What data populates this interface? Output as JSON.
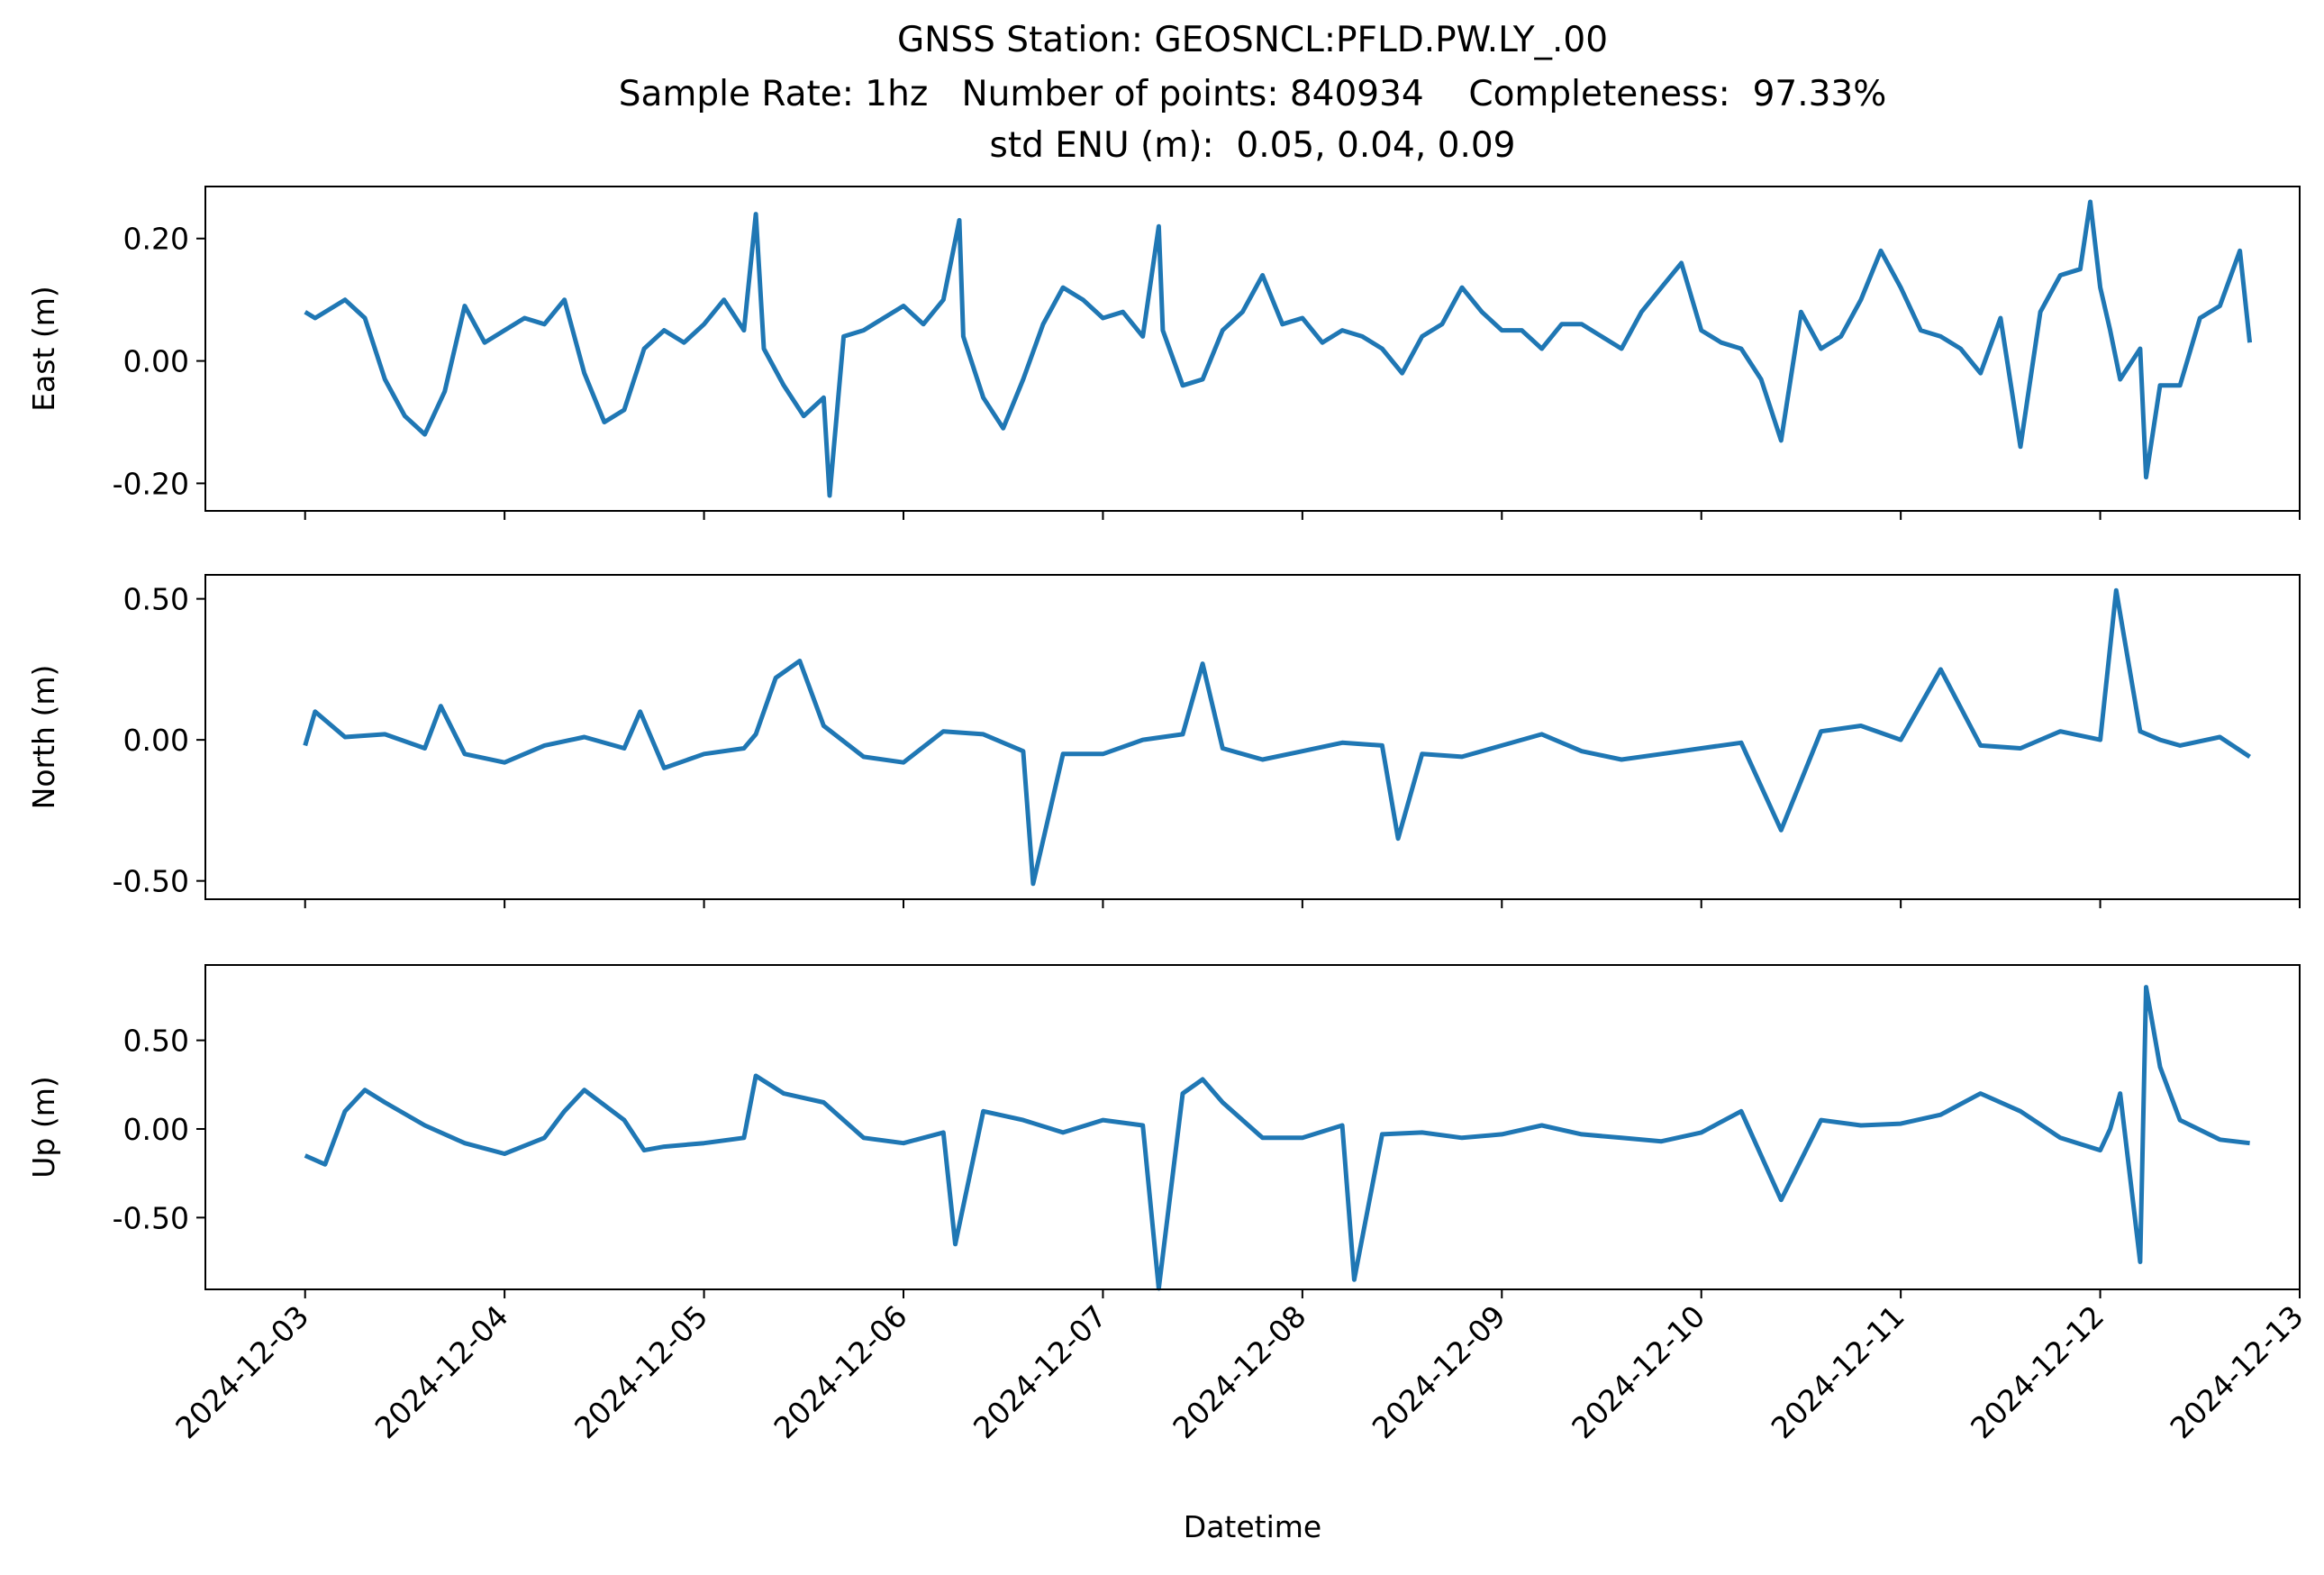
{
  "figure": {
    "title_lines": [
      "GNSS Station: GEOSNCL:PFLD.PW.LY_.00",
      "Sample Rate: 1hz   Number of points: 840934    Completeness:  97.33%",
      "std ENU (m):  0.05, 0.04, 0.09"
    ],
    "xlabel": "Datetime",
    "line_color": "#1f77b4"
  },
  "chart_data": [
    {
      "type": "line",
      "name": "east-panel",
      "ylabel": "East (m)",
      "ylim": [
        -0.245,
        0.285
      ],
      "yticks": [
        0.2,
        0.0,
        -0.2
      ],
      "ytick_labels": [
        "0.20",
        "0.00",
        "-0.20"
      ],
      "xlim": [
        "2024-12-02T12:00",
        "2024-12-13T00:00"
      ],
      "xticks": [
        "2024-12-03",
        "2024-12-04",
        "2024-12-05",
        "2024-12-06",
        "2024-12-07",
        "2024-12-08",
        "2024-12-09",
        "2024-12-10",
        "2024-12-11",
        "2024-12-12",
        "2024-12-13"
      ],
      "x_tick_labels_shown": false,
      "grid": false,
      "color": "#1f77b4",
      "x": [
        "2024-12-03 00:00",
        "2024-12-03 01:12",
        "2024-12-03 02:24",
        "2024-12-03 04:48",
        "2024-12-03 07:12",
        "2024-12-03 09:36",
        "2024-12-03 12:00",
        "2024-12-03 14:24",
        "2024-12-03 16:48",
        "2024-12-03 19:12",
        "2024-12-03 21:36",
        "2024-12-04 00:00",
        "2024-12-04 02:24",
        "2024-12-04 04:48",
        "2024-12-04 07:12",
        "2024-12-04 09:36",
        "2024-12-04 12:00",
        "2024-12-04 14:24",
        "2024-12-04 16:48",
        "2024-12-04 19:12",
        "2024-12-04 21:36",
        "2024-12-05 00:00",
        "2024-12-05 02:24",
        "2024-12-05 04:48",
        "2024-12-05 06:14",
        "2024-12-05 07:12",
        "2024-12-05 09:36",
        "2024-12-05 12:00",
        "2024-12-05 14:24",
        "2024-12-05 15:07",
        "2024-12-05 16:48",
        "2024-12-05 19:12",
        "2024-12-05 21:36",
        "2024-12-06 00:00",
        "2024-12-06 02:24",
        "2024-12-06 04:48",
        "2024-12-06 06:43",
        "2024-12-06 07:12",
        "2024-12-06 09:36",
        "2024-12-06 12:00",
        "2024-12-06 14:24",
        "2024-12-06 16:48",
        "2024-12-06 19:12",
        "2024-12-06 21:36",
        "2024-12-07 00:00",
        "2024-12-07 02:24",
        "2024-12-07 04:48",
        "2024-12-07 06:43",
        "2024-12-07 07:12",
        "2024-12-07 09:36",
        "2024-12-07 12:00",
        "2024-12-07 14:24",
        "2024-12-07 16:48",
        "2024-12-07 19:12",
        "2024-12-07 21:36",
        "2024-12-08 00:00",
        "2024-12-08 02:24",
        "2024-12-08 04:48",
        "2024-12-08 07:12",
        "2024-12-08 09:36",
        "2024-12-08 12:00",
        "2024-12-08 14:24",
        "2024-12-08 16:48",
        "2024-12-08 19:12",
        "2024-12-08 21:36",
        "2024-12-09 00:00",
        "2024-12-09 02:24",
        "2024-12-09 04:48",
        "2024-12-09 07:12",
        "2024-12-09 09:36",
        "2024-12-09 12:00",
        "2024-12-09 14:24",
        "2024-12-09 16:48",
        "2024-12-09 19:12",
        "2024-12-09 21:36",
        "2024-12-10 00:00",
        "2024-12-10 02:24",
        "2024-12-10 04:48",
        "2024-12-10 07:12",
        "2024-12-10 09:36",
        "2024-12-10 12:00",
        "2024-12-10 14:24",
        "2024-12-10 16:48",
        "2024-12-10 19:12",
        "2024-12-10 21:36",
        "2024-12-11 00:00",
        "2024-12-11 02:24",
        "2024-12-11 04:48",
        "2024-12-11 07:12",
        "2024-12-11 09:36",
        "2024-12-11 12:00",
        "2024-12-11 14:24",
        "2024-12-11 16:48",
        "2024-12-11 19:12",
        "2024-12-11 21:36",
        "2024-12-11 22:48",
        "2024-12-12 00:00",
        "2024-12-12 01:12",
        "2024-12-12 02:24",
        "2024-12-12 04:48",
        "2024-12-12 05:31",
        "2024-12-12 07:12",
        "2024-12-12 09:36",
        "2024-12-12 12:00",
        "2024-12-12 14:24",
        "2024-12-12 16:48",
        "2024-12-12 18:00"
      ],
      "values": [
        0.08,
        0.07,
        0.08,
        0.1,
        0.07,
        -0.03,
        -0.09,
        -0.12,
        -0.05,
        0.09,
        0.03,
        0.05,
        0.07,
        0.06,
        0.1,
        -0.02,
        -0.1,
        -0.08,
        0.02,
        0.05,
        0.03,
        0.06,
        0.1,
        0.05,
        0.24,
        0.02,
        -0.04,
        -0.09,
        -0.06,
        -0.22,
        0.04,
        0.05,
        0.07,
        0.09,
        0.06,
        0.1,
        0.23,
        0.04,
        -0.06,
        -0.11,
        -0.03,
        0.06,
        0.12,
        0.1,
        0.07,
        0.08,
        0.04,
        0.22,
        0.05,
        -0.04,
        -0.03,
        0.05,
        0.08,
        0.14,
        0.06,
        0.07,
        0.03,
        0.05,
        0.04,
        0.02,
        -0.02,
        0.04,
        0.06,
        0.12,
        0.08,
        0.05,
        0.05,
        0.02,
        0.06,
        0.06,
        0.04,
        0.02,
        0.08,
        0.12,
        0.16,
        0.05,
        0.03,
        0.02,
        -0.03,
        -0.13,
        0.08,
        0.02,
        0.04,
        0.1,
        0.18,
        0.12,
        0.05,
        0.04,
        0.02,
        -0.02,
        0.07,
        -0.14,
        0.08,
        0.14,
        0.15,
        0.26,
        0.12,
        0.05,
        -0.03,
        0.02,
        -0.19,
        -0.04,
        -0.04,
        0.07,
        0.09,
        0.18,
        0.03
      ]
    },
    {
      "type": "line",
      "name": "north-panel",
      "ylabel": "North (m)",
      "ylim": [
        -0.565,
        0.585
      ],
      "yticks": [
        0.5,
        0.0,
        -0.5
      ],
      "ytick_labels": [
        "0.50",
        "0.00",
        "-0.50"
      ],
      "xlim": [
        "2024-12-02T12:00",
        "2024-12-13T00:00"
      ],
      "xticks": [
        "2024-12-03",
        "2024-12-04",
        "2024-12-05",
        "2024-12-06",
        "2024-12-07",
        "2024-12-08",
        "2024-12-09",
        "2024-12-10",
        "2024-12-11",
        "2024-12-12",
        "2024-12-13"
      ],
      "x_tick_labels_shown": false,
      "grid": false,
      "color": "#1f77b4",
      "x": [
        "2024-12-03 00:00",
        "2024-12-03 01:12",
        "2024-12-03 04:48",
        "2024-12-03 09:36",
        "2024-12-03 14:24",
        "2024-12-03 16:19",
        "2024-12-03 19:12",
        "2024-12-04 00:00",
        "2024-12-04 04:48",
        "2024-12-04 09:36",
        "2024-12-04 14:24",
        "2024-12-04 16:19",
        "2024-12-04 19:12",
        "2024-12-05 00:00",
        "2024-12-05 04:48",
        "2024-12-05 06:14",
        "2024-12-05 08:38",
        "2024-12-05 11:31",
        "2024-12-05 14:24",
        "2024-12-05 19:12",
        "2024-12-06 00:00",
        "2024-12-06 04:48",
        "2024-12-06 09:36",
        "2024-12-06 14:24",
        "2024-12-06 15:36",
        "2024-12-06 19:12",
        "2024-12-07 00:00",
        "2024-12-07 04:48",
        "2024-12-07 09:36",
        "2024-12-07 12:00",
        "2024-12-07 14:24",
        "2024-12-07 19:12",
        "2024-12-08 00:00",
        "2024-12-08 04:48",
        "2024-12-08 09:36",
        "2024-12-08 11:31",
        "2024-12-08 14:24",
        "2024-12-08 19:12",
        "2024-12-09 00:00",
        "2024-12-09 04:48",
        "2024-12-09 09:36",
        "2024-12-09 14:24",
        "2024-12-09 19:12",
        "2024-12-10 00:00",
        "2024-12-10 04:48",
        "2024-12-10 09:36",
        "2024-12-10 14:24",
        "2024-12-10 19:12",
        "2024-12-11 00:00",
        "2024-12-11 04:48",
        "2024-12-11 09:36",
        "2024-12-11 14:24",
        "2024-12-11 19:12",
        "2024-12-12 00:00",
        "2024-12-12 01:55",
        "2024-12-12 04:48",
        "2024-12-12 07:12",
        "2024-12-12 09:36",
        "2024-12-12 14:24",
        "2024-12-12 18:00"
      ],
      "values": [
        -0.02,
        0.1,
        0.01,
        0.02,
        -0.03,
        0.12,
        -0.05,
        -0.08,
        -0.02,
        0.01,
        -0.03,
        0.1,
        -0.1,
        -0.05,
        -0.03,
        0.02,
        0.22,
        0.28,
        0.05,
        -0.06,
        -0.08,
        0.03,
        0.02,
        -0.04,
        -0.51,
        -0.05,
        -0.05,
        0.0,
        0.02,
        0.27,
        -0.03,
        -0.07,
        -0.04,
        -0.01,
        -0.02,
        -0.35,
        -0.05,
        -0.06,
        -0.02,
        0.02,
        -0.04,
        -0.07,
        -0.05,
        -0.03,
        -0.01,
        -0.32,
        0.03,
        0.05,
        0.0,
        0.25,
        -0.02,
        -0.03,
        0.03,
        0.0,
        0.53,
        0.03,
        0.0,
        -0.02,
        0.01,
        -0.06
      ]
    },
    {
      "type": "line",
      "name": "up-panel",
      "ylabel": "Up (m)",
      "ylim": [
        -0.905,
        0.925
      ],
      "yticks": [
        0.5,
        0.0,
        -0.5
      ],
      "ytick_labels": [
        "0.50",
        "0.00",
        "-0.50"
      ],
      "xlim": [
        "2024-12-02T12:00",
        "2024-12-13T00:00"
      ],
      "xticks": [
        "2024-12-03",
        "2024-12-04",
        "2024-12-05",
        "2024-12-06",
        "2024-12-07",
        "2024-12-08",
        "2024-12-09",
        "2024-12-10",
        "2024-12-11",
        "2024-12-12",
        "2024-12-13"
      ],
      "x_tick_labels": [
        "2024-12-03",
        "2024-12-04",
        "2024-12-05",
        "2024-12-06",
        "2024-12-07",
        "2024-12-08",
        "2024-12-09",
        "2024-12-10",
        "2024-12-11",
        "2024-12-12",
        "2024-12-13"
      ],
      "x_tick_label_rotation_deg": 45,
      "grid": false,
      "color": "#1f77b4",
      "x": [
        "2024-12-03 00:00",
        "2024-12-03 02:24",
        "2024-12-03 04:48",
        "2024-12-03 07:12",
        "2024-12-03 09:36",
        "2024-12-03 14:24",
        "2024-12-03 19:12",
        "2024-12-04 00:00",
        "2024-12-04 04:48",
        "2024-12-04 07:12",
        "2024-12-04 09:36",
        "2024-12-04 14:24",
        "2024-12-04 16:48",
        "2024-12-04 19:12",
        "2024-12-05 00:00",
        "2024-12-05 04:48",
        "2024-12-05 06:14",
        "2024-12-05 09:36",
        "2024-12-05 14:24",
        "2024-12-05 19:12",
        "2024-12-06 00:00",
        "2024-12-06 04:48",
        "2024-12-06 06:14",
        "2024-12-06 09:36",
        "2024-12-06 14:24",
        "2024-12-06 19:12",
        "2024-12-07 00:00",
        "2024-12-07 04:48",
        "2024-12-07 06:43",
        "2024-12-07 09:36",
        "2024-12-07 12:00",
        "2024-12-07 14:24",
        "2024-12-07 19:12",
        "2024-12-08 00:00",
        "2024-12-08 04:48",
        "2024-12-08 06:14",
        "2024-12-08 09:36",
        "2024-12-08 14:24",
        "2024-12-08 19:12",
        "2024-12-09 00:00",
        "2024-12-09 04:48",
        "2024-12-09 09:36",
        "2024-12-09 14:24",
        "2024-12-09 19:12",
        "2024-12-10 00:00",
        "2024-12-10 04:48",
        "2024-12-10 09:36",
        "2024-12-10 14:24",
        "2024-12-10 19:12",
        "2024-12-11 00:00",
        "2024-12-11 04:48",
        "2024-12-11 09:36",
        "2024-12-11 14:24",
        "2024-12-11 19:12",
        "2024-12-12 00:00",
        "2024-12-12 01:12",
        "2024-12-12 02:24",
        "2024-12-12 04:48",
        "2024-12-12 05:31",
        "2024-12-12 07:12",
        "2024-12-12 09:36",
        "2024-12-12 14:24",
        "2024-12-12 18:00"
      ],
      "values": [
        -0.15,
        -0.2,
        0.1,
        0.22,
        0.15,
        0.02,
        -0.08,
        -0.14,
        -0.05,
        0.1,
        0.22,
        0.05,
        -0.12,
        -0.1,
        -0.08,
        -0.05,
        0.3,
        0.2,
        0.15,
        -0.05,
        -0.08,
        -0.02,
        -0.65,
        0.1,
        0.05,
        -0.02,
        0.05,
        0.02,
        -0.9,
        0.2,
        0.28,
        0.15,
        -0.05,
        -0.05,
        0.02,
        -0.85,
        -0.03,
        -0.02,
        -0.05,
        -0.03,
        0.02,
        -0.03,
        -0.05,
        -0.07,
        -0.02,
        0.1,
        -0.4,
        0.05,
        0.02,
        0.03,
        0.08,
        0.2,
        0.1,
        -0.05,
        -0.12,
        0.0,
        0.2,
        -0.75,
        0.8,
        0.35,
        0.05,
        -0.06,
        -0.08
      ]
    }
  ]
}
